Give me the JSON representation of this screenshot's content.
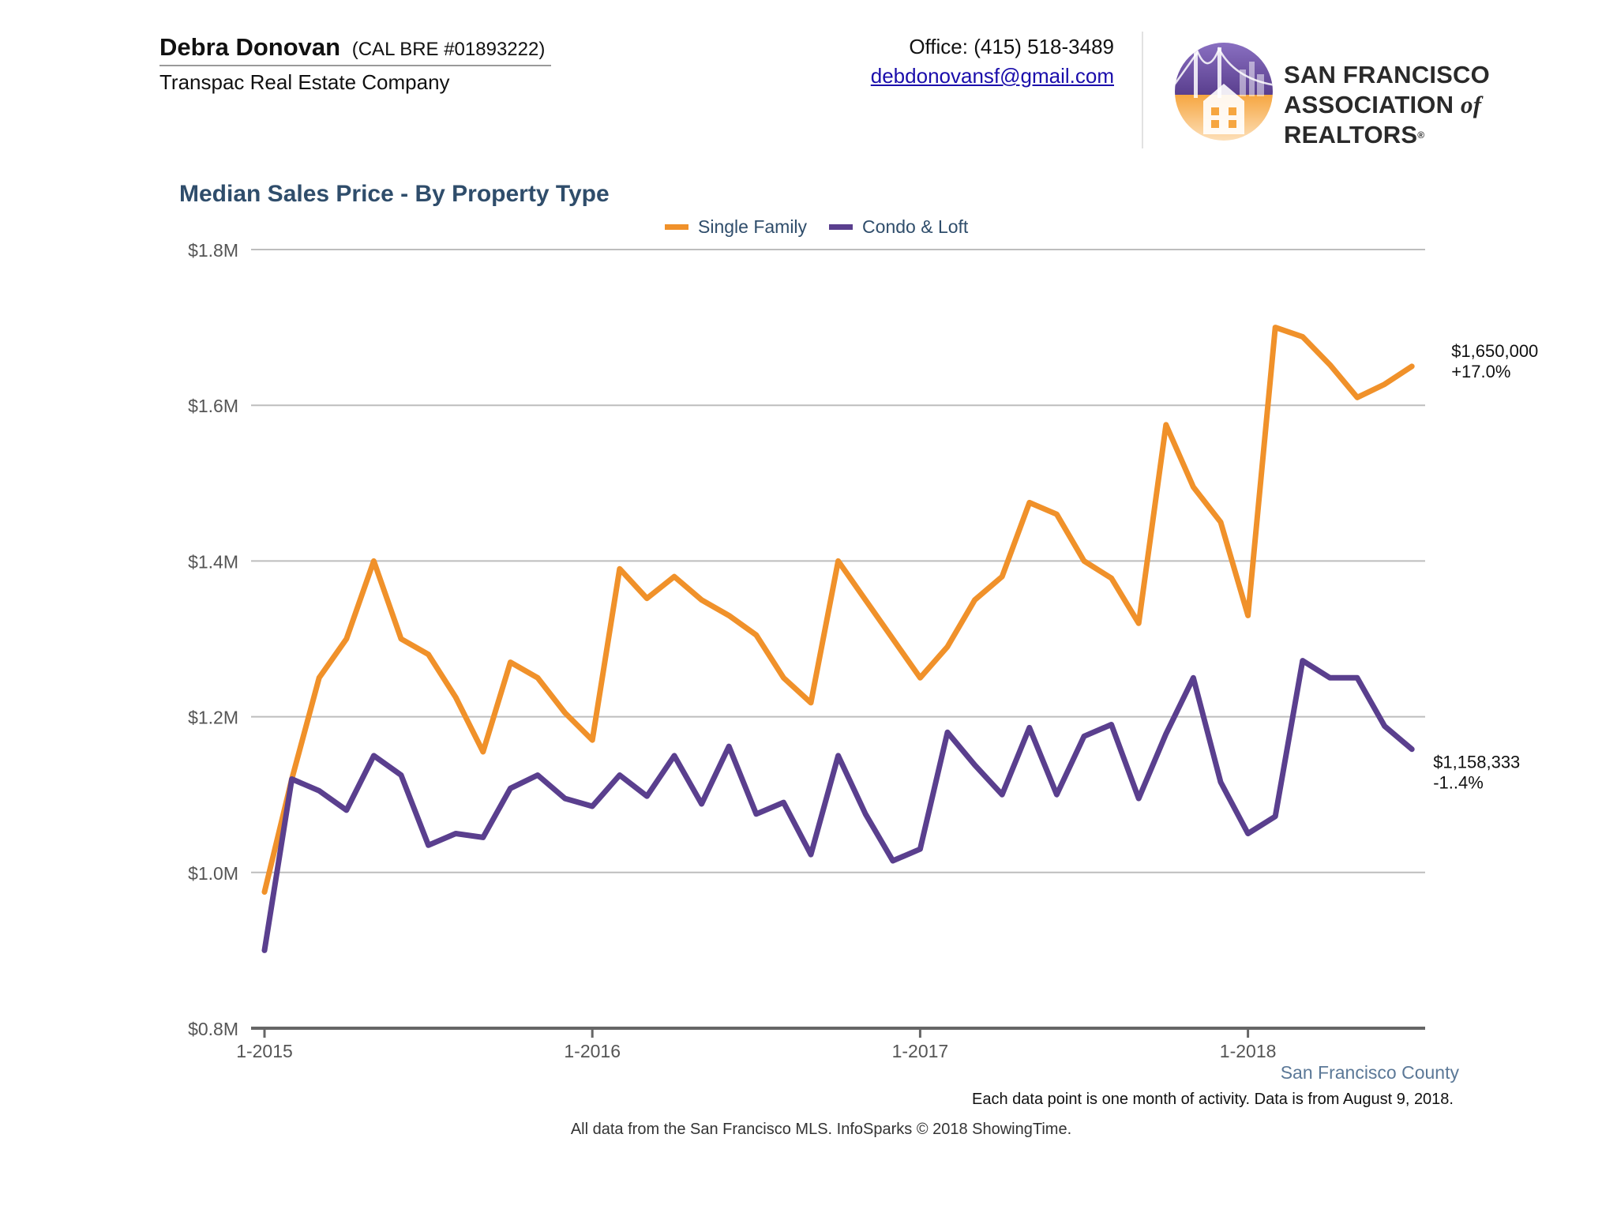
{
  "header": {
    "agent_name": "Debra Donovan",
    "agent_license": "(CAL BRE #01893222)",
    "agent_company": "Transpac Real Estate Company",
    "phone": "Office: (415) 518-3489",
    "email": "debdonovansf@gmail.com",
    "logo_line1": "SAN FRANCISCO",
    "logo_line2_a": "ASSOCIATION",
    "logo_line2_of": "of",
    "logo_line2_b": "REALTORS",
    "logo_reg": "®"
  },
  "chart_data": {
    "type": "line",
    "title": "Median Sales Price - By Property Type",
    "xlabel": "",
    "ylabel": "",
    "ylim": [
      800000,
      1800000
    ],
    "y_ticks": [
      800000,
      1000000,
      1200000,
      1400000,
      1600000,
      1800000
    ],
    "y_tick_labels": [
      "$0.8M",
      "$1.0M",
      "$1.2M",
      "$1.4M",
      "$1.6M",
      "$1.8M"
    ],
    "x": [
      "1-2015",
      "2-2015",
      "3-2015",
      "4-2015",
      "5-2015",
      "6-2015",
      "7-2015",
      "8-2015",
      "9-2015",
      "10-2015",
      "11-2015",
      "12-2015",
      "1-2016",
      "2-2016",
      "3-2016",
      "4-2016",
      "5-2016",
      "6-2016",
      "7-2016",
      "8-2016",
      "9-2016",
      "10-2016",
      "11-2016",
      "12-2016",
      "1-2017",
      "2-2017",
      "3-2017",
      "4-2017",
      "5-2017",
      "6-2017",
      "7-2017",
      "8-2017",
      "9-2017",
      "10-2017",
      "11-2017",
      "12-2017",
      "1-2018",
      "2-2018",
      "3-2018",
      "4-2018",
      "5-2018",
      "6-2018",
      "7-2018"
    ],
    "x_tick_labels": [
      "1-2015",
      "1-2016",
      "1-2017",
      "1-2018"
    ],
    "grid": true,
    "legend_position": "top-center",
    "series": [
      {
        "name": "Single Family",
        "color": "#f0912a",
        "values": [
          975000,
          1120000,
          1250000,
          1300000,
          1400000,
          1300000,
          1280000,
          1225000,
          1155000,
          1270000,
          1250000,
          1205000,
          1170000,
          1390000,
          1352000,
          1380000,
          1350000,
          1330000,
          1305000,
          1250000,
          1218000,
          1400000,
          1350000,
          1300000,
          1250000,
          1290000,
          1350000,
          1380000,
          1475000,
          1460000,
          1400000,
          1378000,
          1320000,
          1575000,
          1495000,
          1450000,
          1330000,
          1700000,
          1688000,
          1652000,
          1610000,
          1627000,
          1650000
        ],
        "end_value_label": "$1,650,000",
        "end_change_label": "+17.0%"
      },
      {
        "name": "Condo & Loft",
        "color": "#5a3f8e",
        "values": [
          900000,
          1120000,
          1105000,
          1080000,
          1150000,
          1125000,
          1035000,
          1050000,
          1045000,
          1108000,
          1125000,
          1095000,
          1085000,
          1125000,
          1098000,
          1150000,
          1088000,
          1162000,
          1075000,
          1090000,
          1023000,
          1150000,
          1075000,
          1015000,
          1030000,
          1180000,
          1138000,
          1100000,
          1186000,
          1100000,
          1175000,
          1190000,
          1095000,
          1178000,
          1250000,
          1116000,
          1050000,
          1072000,
          1272000,
          1250000,
          1250000,
          1188000,
          1158333
        ],
        "end_value_label": "$1,158,333",
        "end_change_label": "-1..4%"
      }
    ]
  },
  "footer": {
    "county": "San Francisco County",
    "note": "Each data point is one month of activity. Data is from August 9, 2018.",
    "source": "All data from the San Francisco MLS. InfoSparks © 2018 ShowingTime."
  }
}
